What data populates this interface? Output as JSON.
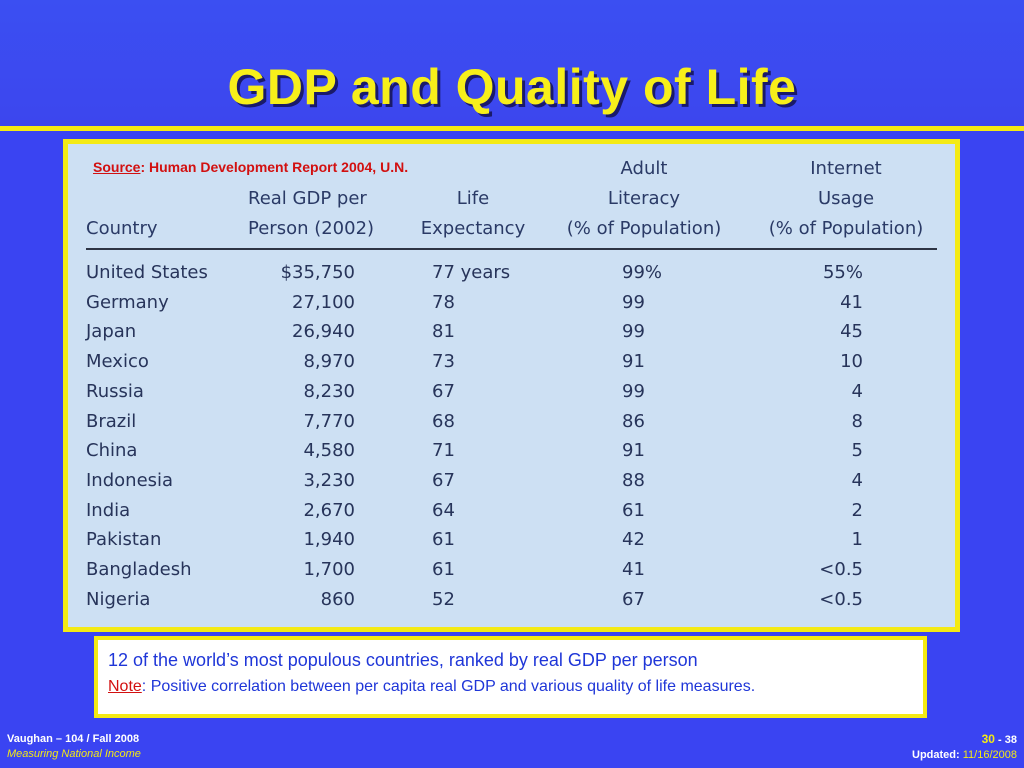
{
  "title": "GDP and Quality of Life",
  "source": {
    "label": "Source",
    "text": ": Human Development Report 2004, U.N."
  },
  "table": {
    "headers": {
      "country": [
        "Country"
      ],
      "gdp": [
        "Real GDP per",
        "Person (2002)"
      ],
      "life": [
        "Life",
        "Expectancy"
      ],
      "literacy": [
        "Adult",
        "Literacy",
        "(% of Population)"
      ],
      "internet": [
        "Internet",
        "Usage",
        "(% of Population)"
      ]
    },
    "rows": [
      {
        "country": "United States",
        "gdp": "$35,750",
        "life": "77 years",
        "literacy": "99%",
        "internet": "55%"
      },
      {
        "country": "Germany",
        "gdp": "27,100",
        "life": "78",
        "literacy": "99",
        "internet": "41"
      },
      {
        "country": "Japan",
        "gdp": "26,940",
        "life": "81",
        "literacy": "99",
        "internet": "45"
      },
      {
        "country": "Mexico",
        "gdp": "8,970",
        "life": "73",
        "literacy": "91",
        "internet": "10"
      },
      {
        "country": "Russia",
        "gdp": "8,230",
        "life": "67",
        "literacy": "99",
        "internet": "4"
      },
      {
        "country": "Brazil",
        "gdp": "7,770",
        "life": "68",
        "literacy": "86",
        "internet": "8"
      },
      {
        "country": "China",
        "gdp": "4,580",
        "life": "71",
        "literacy": "91",
        "internet": "5"
      },
      {
        "country": "Indonesia",
        "gdp": "3,230",
        "life": "67",
        "literacy": "88",
        "internet": "4"
      },
      {
        "country": "India",
        "gdp": "2,670",
        "life": "64",
        "literacy": "61",
        "internet": "2"
      },
      {
        "country": "Pakistan",
        "gdp": "1,940",
        "life": "61",
        "literacy": "42",
        "internet": "1"
      },
      {
        "country": "Bangladesh",
        "gdp": "1,700",
        "life": "61",
        "literacy": "41",
        "internet": "<0.5"
      },
      {
        "country": "Nigeria",
        "gdp": "860",
        "life": "52",
        "literacy": "67",
        "internet": "<0.5"
      }
    ]
  },
  "note": {
    "line1": "12 of the world’s most populous countries, ranked by real GDP per person",
    "label": "Note",
    "text": ": Positive correlation between per capita real GDP and various quality of life measures."
  },
  "footer": {
    "author": "Vaughan – 104 / Fall 2008",
    "course_title": "Measuring National Income",
    "slide_number": "30",
    "slide_sep": " - ",
    "slide_total": "38",
    "updated_label": "Updated: ",
    "updated_date": "11/16/2008"
  },
  "colors": {
    "background": "#3a44f2",
    "title": "#f7ef1a",
    "accent_yellow": "#f4ea14",
    "table_bg": "#cde0f3",
    "source_red": "#d21010",
    "note_blue": "#1f36d8"
  }
}
